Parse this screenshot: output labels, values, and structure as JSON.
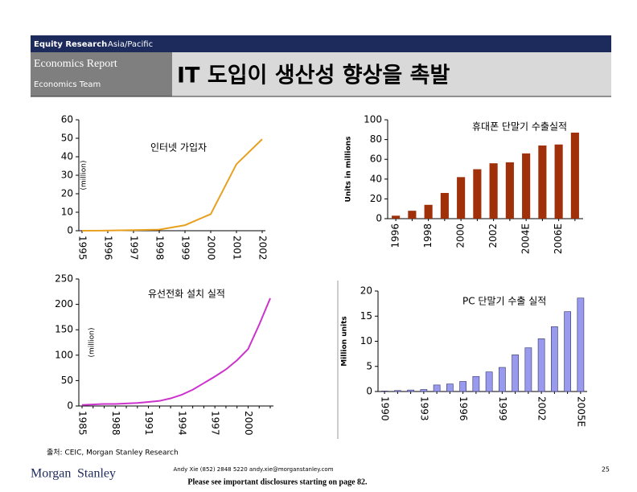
{
  "header": {
    "division": "Equity Research",
    "region": "Asia/Pacific",
    "report": "Economics Report",
    "team": "Economics Team",
    "title": "IT 도입이 생산성 향상을 촉발"
  },
  "chart_data": [
    {
      "type": "line",
      "annotation": "인터넷 가입자",
      "y_label": "(million)",
      "color": "#e8a020",
      "categories": [
        "1995",
        "1996",
        "1997",
        "1998",
        "1999",
        "2000",
        "2001",
        "2002"
      ],
      "values": [
        0,
        0.1,
        0.3,
        0.6,
        3,
        9,
        36,
        49.5
      ],
      "ylim": [
        0,
        60
      ],
      "yticks": [
        0,
        10,
        20,
        30,
        40,
        50,
        60
      ]
    },
    {
      "type": "bar",
      "title": "휴대폰 단말기 수출실적",
      "y_label": "Units in millions",
      "color": "#a0300a",
      "categories": [
        "1996",
        null,
        "1998",
        null,
        "2000",
        null,
        "2002",
        null,
        "2004E",
        null,
        "2006E",
        null
      ],
      "values": [
        3,
        8,
        14,
        26,
        42,
        50,
        56,
        57,
        66,
        74,
        75,
        87
      ],
      "ylim": [
        0,
        100
      ],
      "yticks": [
        0,
        20,
        40,
        60,
        80,
        100
      ]
    },
    {
      "type": "line",
      "annotation": "유선전화 설치 실적",
      "y_label": "(million)",
      "color": "#cc33cc",
      "categories": [
        "1985",
        null,
        null,
        "1988",
        null,
        null,
        "1991",
        null,
        null,
        "1994",
        null,
        null,
        "1997",
        null,
        null,
        "2000",
        null,
        null
      ],
      "values": [
        2,
        3,
        4,
        4,
        5,
        6,
        8,
        10,
        15,
        22,
        32,
        45,
        58,
        72,
        90,
        112,
        160,
        212
      ],
      "ylim": [
        0,
        250
      ],
      "yticks": [
        0,
        50,
        100,
        150,
        200,
        250
      ]
    },
    {
      "type": "bar",
      "title": "PC 단말기 수출 실적",
      "y_label": "Million units",
      "color": "#9999ee",
      "categories": [
        "1990",
        null,
        null,
        "1993",
        null,
        null,
        "1996",
        null,
        null,
        "1999",
        null,
        null,
        "2002",
        null,
        null,
        "2005E"
      ],
      "values": [
        0.1,
        0.2,
        0.3,
        0.4,
        1.3,
        1.5,
        2,
        3,
        3.9,
        4.8,
        7.3,
        8.7,
        10.5,
        12.9,
        15.9,
        18.6
      ],
      "ylim": [
        0,
        20
      ],
      "yticks": [
        0,
        5,
        10,
        15,
        20
      ]
    }
  ],
  "footer": {
    "source": "출처: CEIC, Morgan Stanley Research",
    "logo_left": "Morgan",
    "logo_right": "Stanley",
    "contact": "Andy Xie (852) 2848 5220 andy.xie@morganstanley.com",
    "disclosure": "Please see important disclosures starting on page 82.",
    "page": "25"
  }
}
